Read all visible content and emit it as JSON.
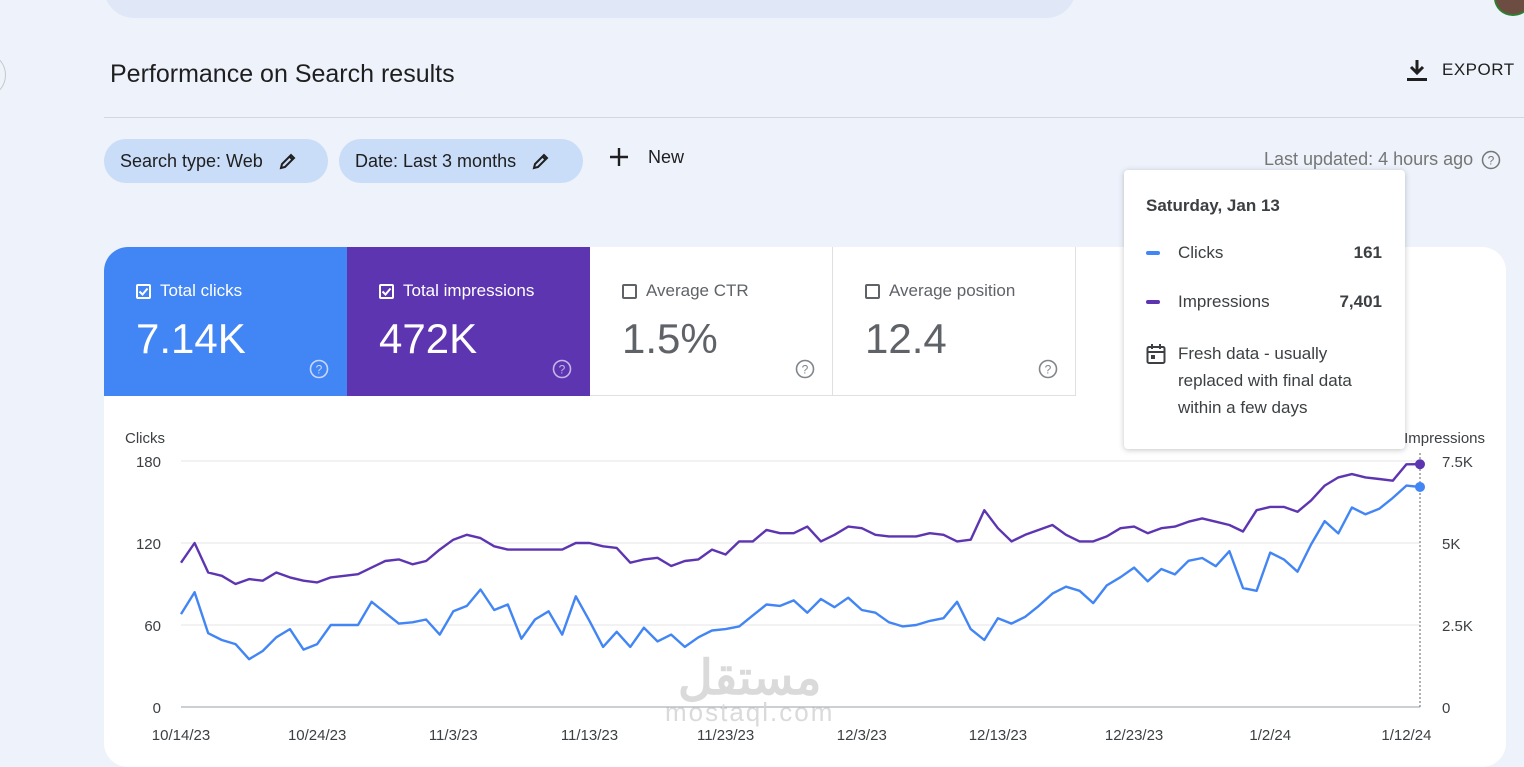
{
  "header": {
    "title": "Performance on Search results",
    "export_label": "EXPORT"
  },
  "filters": {
    "search_type": "Search type: Web",
    "date": "Date: Last 3 months",
    "new_label": "New",
    "last_updated": "Last updated: 4 hours ago"
  },
  "metrics": [
    {
      "label": "Total clicks",
      "value": "7.14K",
      "checked": true
    },
    {
      "label": "Total impressions",
      "value": "472K",
      "checked": true
    },
    {
      "label": "Average CTR",
      "value": "1.5%",
      "checked": false
    },
    {
      "label": "Average position",
      "value": "12.4",
      "checked": false
    }
  ],
  "tooltip": {
    "date": "Saturday, Jan 13",
    "clicks_label": "Clicks",
    "clicks_value": "161",
    "impressions_label": "Impressions",
    "impressions_value": "7,401",
    "note": "Fresh data - usually replaced with final data within a few days"
  },
  "watermark": {
    "arabic": "مستقل",
    "latin": "mostaql.com"
  },
  "colors": {
    "clicks": "#4285f4",
    "impressions": "#5e35b1"
  },
  "chart_data": {
    "type": "line",
    "title": "Performance on Search results",
    "x_tick_labels": [
      "10/14/23",
      "10/24/23",
      "11/3/23",
      "11/13/23",
      "11/23/23",
      "12/3/23",
      "12/13/23",
      "12/23/23",
      "1/2/24",
      "1/12/24"
    ],
    "x_tick_day_index": [
      0,
      10,
      20,
      30,
      40,
      50,
      60,
      70,
      80,
      90
    ],
    "left_axis": {
      "label": "Clicks",
      "ylim": [
        0,
        180
      ],
      "ticks": [
        0,
        60,
        120,
        180
      ],
      "tick_labels": [
        "0",
        "60",
        "120",
        "180"
      ]
    },
    "right_axis": {
      "label": "Impressions",
      "ylim": [
        0,
        7500
      ],
      "ticks": [
        0,
        2500,
        5000,
        7500
      ],
      "tick_labels": [
        "0",
        "2.5K",
        "5K",
        "7.5K"
      ]
    },
    "grid": true,
    "series": [
      {
        "name": "Clicks",
        "axis": "left",
        "values": [
          68,
          84,
          54,
          49,
          46,
          35,
          41,
          51,
          57,
          42,
          46,
          60,
          60,
          60,
          77,
          69,
          61,
          62,
          64,
          53,
          70,
          74,
          86,
          71,
          75,
          50,
          64,
          70,
          53,
          81,
          63,
          44,
          55,
          44,
          58,
          48,
          53,
          44,
          51,
          56,
          57,
          59,
          67,
          75,
          74,
          78,
          69,
          79,
          73,
          80,
          71,
          69,
          62,
          59,
          60,
          63,
          65,
          77,
          57,
          49,
          65,
          61,
          66,
          74,
          83,
          88,
          85,
          76,
          89,
          95,
          102,
          92,
          101,
          97,
          107,
          109,
          103,
          114,
          87,
          85,
          113,
          108,
          99,
          119,
          136,
          127,
          146,
          141,
          145,
          153,
          162,
          161
        ]
      },
      {
        "name": "Impressions",
        "axis": "right",
        "values": [
          4400,
          5000,
          4100,
          4000,
          3750,
          3900,
          3850,
          4100,
          3950,
          3850,
          3800,
          3950,
          4000,
          4050,
          4250,
          4450,
          4500,
          4350,
          4450,
          4800,
          5100,
          5250,
          5150,
          4900,
          4800,
          4800,
          4800,
          4800,
          4800,
          5000,
          5000,
          4900,
          4850,
          4400,
          4500,
          4550,
          4300,
          4450,
          4500,
          4800,
          4650,
          5050,
          5050,
          5400,
          5300,
          5300,
          5500,
          5050,
          5250,
          5500,
          5450,
          5250,
          5200,
          5200,
          5200,
          5300,
          5250,
          5050,
          5100,
          6000,
          5450,
          5050,
          5250,
          5400,
          5550,
          5250,
          5050,
          5050,
          5200,
          5450,
          5500,
          5300,
          5450,
          5500,
          5650,
          5750,
          5650,
          5550,
          5350,
          6000,
          6100,
          6100,
          5950,
          6300,
          6750,
          7000,
          7100,
          7000,
          6950,
          6900,
          7400,
          7401
        ]
      }
    ],
    "highlight_index": 91
  }
}
